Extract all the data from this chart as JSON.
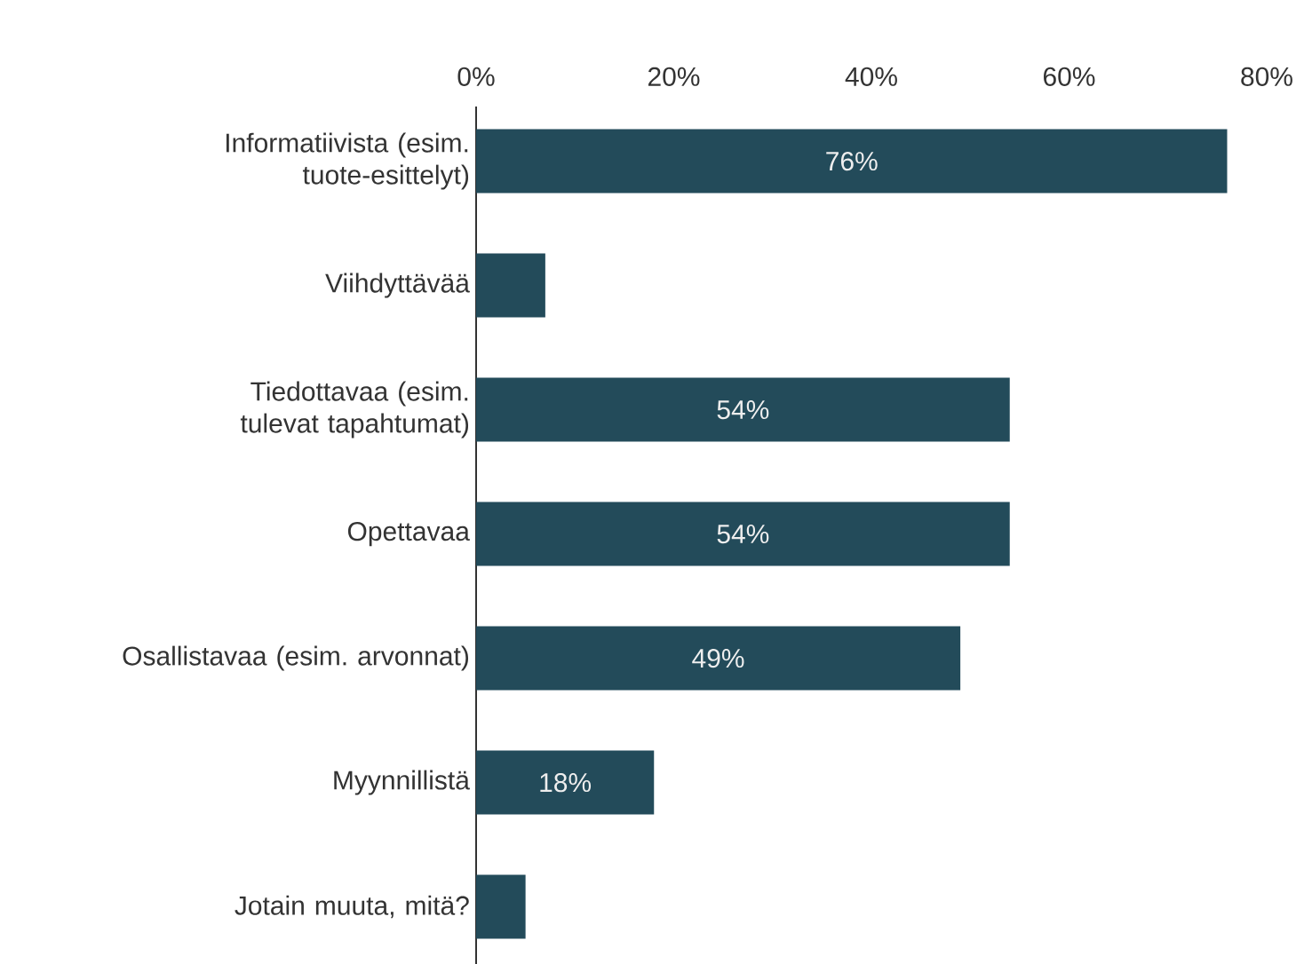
{
  "chart_data": {
    "type": "bar",
    "orientation": "horizontal",
    "categories": [
      "Informatiivista (esim. tuote-esittelyt)",
      "Viihdyttävää",
      "Tiedottavaa (esim. tulevat tapahtumat)",
      "Opettavaa",
      "Osallistavaa (esim. arvonnat)",
      "Myynnillistä",
      "Jotain muuta, mitä?"
    ],
    "values": [
      76,
      7,
      54,
      54,
      49,
      18,
      5
    ],
    "value_labels": [
      "76%",
      null,
      "54%",
      "54%",
      "49%",
      "18%",
      null
    ],
    "color": "#234b5a",
    "xlim": [
      0,
      80
    ],
    "xticks": [
      {
        "value": 0,
        "label": "0%"
      },
      {
        "value": 20,
        "label": "20%"
      },
      {
        "value": 40,
        "label": "40%"
      },
      {
        "value": 60,
        "label": "60%"
      },
      {
        "value": 80,
        "label": "80%"
      }
    ]
  }
}
